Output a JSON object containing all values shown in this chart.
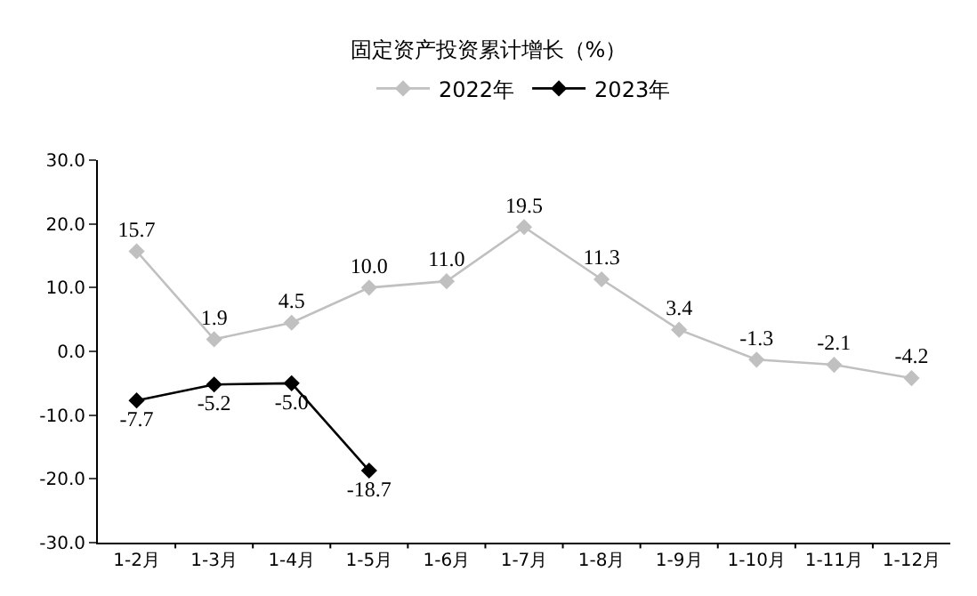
{
  "chart_data": {
    "type": "line",
    "title": "固定资产投资累计增长（%）",
    "categories": [
      "1-2月",
      "1-3月",
      "1-4月",
      "1-5月",
      "1-6月",
      "1-7月",
      "1-8月",
      "1-9月",
      "1-10月",
      "1-11月",
      "1-12月"
    ],
    "series": [
      {
        "name": "2022年",
        "color": "#c0c0c0",
        "values": [
          15.7,
          1.9,
          4.5,
          10.0,
          11.0,
          19.5,
          11.3,
          3.4,
          -1.3,
          -2.1,
          -4.2
        ],
        "value_labels": [
          "15.7",
          "1.9",
          "4.5",
          "10.0",
          "11.0",
          "19.5",
          "11.3",
          "3.4",
          "-1.3",
          "-2.1",
          "-4.2"
        ]
      },
      {
        "name": "2023年",
        "color": "#000000",
        "values": [
          -7.7,
          -5.2,
          -5.0,
          -18.7,
          null,
          null,
          null,
          null,
          null,
          null,
          null
        ],
        "value_labels": [
          "-7.7",
          "-5.2",
          "-5.0",
          "-18.7",
          null,
          null,
          null,
          null,
          null,
          null,
          null
        ]
      }
    ],
    "ylim": [
      -30,
      30
    ],
    "yticks": [
      {
        "value": -30,
        "label": "-30.0"
      },
      {
        "value": -20,
        "label": "-20.0"
      },
      {
        "value": -10,
        "label": "-10.0"
      },
      {
        "value": 0,
        "label": "0.0"
      },
      {
        "value": 10,
        "label": "10.0"
      },
      {
        "value": 20,
        "label": "20.0"
      },
      {
        "value": 30,
        "label": "30.0"
      }
    ],
    "grid": false,
    "legend": "top",
    "marker": "diamond",
    "line_style": "solid"
  }
}
